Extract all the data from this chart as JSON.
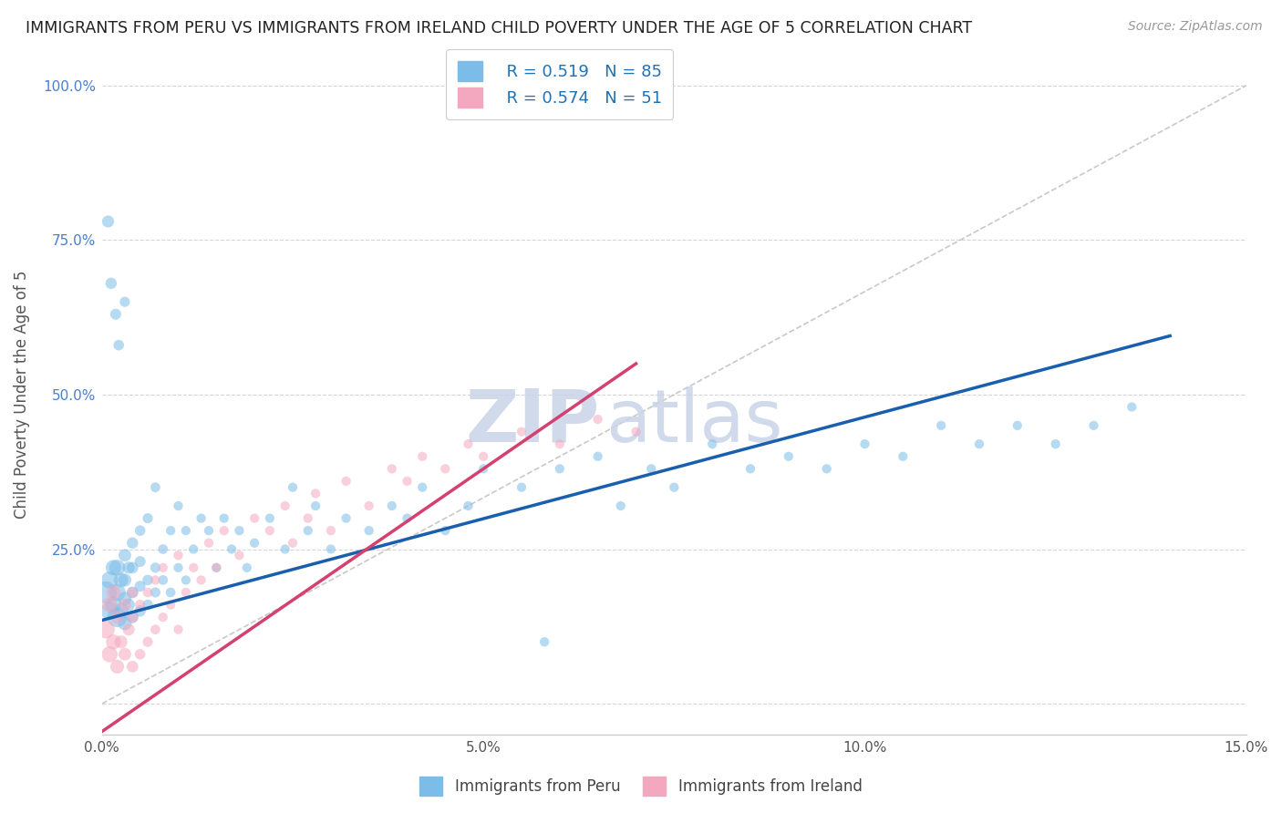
{
  "title": "IMMIGRANTS FROM PERU VS IMMIGRANTS FROM IRELAND CHILD POVERTY UNDER THE AGE OF 5 CORRELATION CHART",
  "source_text": "Source: ZipAtlas.com",
  "ylabel": "Child Poverty Under the Age of 5",
  "xlim": [
    0.0,
    0.15
  ],
  "ylim": [
    -0.05,
    1.05
  ],
  "xticks": [
    0.0,
    0.05,
    0.1,
    0.15
  ],
  "xticklabels": [
    "0.0%",
    "5.0%",
    "10.0%",
    "15.0%"
  ],
  "yticks": [
    0.0,
    0.25,
    0.5,
    0.75,
    1.0
  ],
  "yticklabels": [
    "",
    "25.0%",
    "50.0%",
    "75.0%",
    "100.0%"
  ],
  "blue_color": "#7bbde8",
  "pink_color": "#f4a8bf",
  "blue_R": 0.519,
  "blue_N": 85,
  "pink_R": 0.574,
  "pink_N": 51,
  "blue_line_color": "#1a5fad",
  "pink_line_color": "#d44070",
  "blue_line_x0": 0.0,
  "blue_line_y0": 0.135,
  "blue_line_x1": 0.14,
  "blue_line_y1": 0.595,
  "pink_line_x0": 0.0,
  "pink_line_y0": -0.045,
  "pink_line_x1": 0.07,
  "pink_line_y1": 0.55,
  "watermark_zip": "ZIP",
  "watermark_atlas": "atlas",
  "legend_label_blue": "Immigrants from Peru",
  "legend_label_pink": "Immigrants from Ireland",
  "blue_scatter_x": [
    0.0005,
    0.001,
    0.001,
    0.0015,
    0.0015,
    0.002,
    0.002,
    0.002,
    0.0025,
    0.0025,
    0.003,
    0.003,
    0.003,
    0.003,
    0.0035,
    0.0035,
    0.004,
    0.004,
    0.004,
    0.004,
    0.005,
    0.005,
    0.005,
    0.005,
    0.006,
    0.006,
    0.006,
    0.007,
    0.007,
    0.007,
    0.008,
    0.008,
    0.009,
    0.009,
    0.01,
    0.01,
    0.011,
    0.011,
    0.012,
    0.013,
    0.014,
    0.015,
    0.016,
    0.017,
    0.018,
    0.019,
    0.02,
    0.022,
    0.024,
    0.025,
    0.027,
    0.028,
    0.03,
    0.032,
    0.035,
    0.038,
    0.04,
    0.042,
    0.045,
    0.048,
    0.05,
    0.055,
    0.058,
    0.06,
    0.065,
    0.068,
    0.072,
    0.075,
    0.08,
    0.085,
    0.09,
    0.095,
    0.1,
    0.105,
    0.11,
    0.115,
    0.12,
    0.125,
    0.13,
    0.135,
    0.0008,
    0.0012,
    0.0018,
    0.0022,
    0.003
  ],
  "blue_scatter_y": [
    0.18,
    0.15,
    0.2,
    0.16,
    0.22,
    0.14,
    0.18,
    0.22,
    0.15,
    0.2,
    0.13,
    0.17,
    0.2,
    0.24,
    0.16,
    0.22,
    0.14,
    0.18,
    0.22,
    0.26,
    0.15,
    0.19,
    0.23,
    0.28,
    0.16,
    0.2,
    0.3,
    0.18,
    0.22,
    0.35,
    0.2,
    0.25,
    0.18,
    0.28,
    0.22,
    0.32,
    0.2,
    0.28,
    0.25,
    0.3,
    0.28,
    0.22,
    0.3,
    0.25,
    0.28,
    0.22,
    0.26,
    0.3,
    0.25,
    0.35,
    0.28,
    0.32,
    0.25,
    0.3,
    0.28,
    0.32,
    0.3,
    0.35,
    0.28,
    0.32,
    0.38,
    0.35,
    0.1,
    0.38,
    0.4,
    0.32,
    0.38,
    0.35,
    0.42,
    0.38,
    0.4,
    0.38,
    0.42,
    0.4,
    0.45,
    0.42,
    0.45,
    0.42,
    0.45,
    0.48,
    0.78,
    0.68,
    0.63,
    0.58,
    0.65
  ],
  "blue_scatter_size": [
    300,
    200,
    180,
    160,
    150,
    250,
    180,
    160,
    140,
    130,
    120,
    110,
    105,
    100,
    95,
    90,
    90,
    85,
    85,
    80,
    80,
    75,
    75,
    70,
    70,
    70,
    65,
    65,
    65,
    60,
    60,
    60,
    60,
    55,
    55,
    55,
    55,
    55,
    55,
    55,
    55,
    55,
    55,
    55,
    55,
    55,
    55,
    55,
    55,
    55,
    55,
    55,
    55,
    55,
    55,
    55,
    55,
    55,
    55,
    55,
    55,
    55,
    55,
    55,
    55,
    55,
    55,
    55,
    55,
    55,
    55,
    55,
    55,
    55,
    55,
    55,
    55,
    55,
    55,
    55,
    90,
    80,
    75,
    70,
    65
  ],
  "pink_scatter_x": [
    0.0005,
    0.001,
    0.001,
    0.0015,
    0.0015,
    0.002,
    0.002,
    0.0025,
    0.003,
    0.003,
    0.0035,
    0.004,
    0.004,
    0.004,
    0.005,
    0.005,
    0.006,
    0.006,
    0.007,
    0.007,
    0.008,
    0.008,
    0.009,
    0.01,
    0.01,
    0.011,
    0.012,
    0.013,
    0.014,
    0.015,
    0.016,
    0.018,
    0.02,
    0.022,
    0.024,
    0.025,
    0.027,
    0.028,
    0.03,
    0.032,
    0.035,
    0.038,
    0.04,
    0.042,
    0.045,
    0.048,
    0.05,
    0.055,
    0.06,
    0.065,
    0.07
  ],
  "pink_scatter_y": [
    0.12,
    0.08,
    0.16,
    0.1,
    0.18,
    0.06,
    0.14,
    0.1,
    0.08,
    0.16,
    0.12,
    0.06,
    0.14,
    0.18,
    0.08,
    0.16,
    0.1,
    0.18,
    0.12,
    0.2,
    0.14,
    0.22,
    0.16,
    0.12,
    0.24,
    0.18,
    0.22,
    0.2,
    0.26,
    0.22,
    0.28,
    0.24,
    0.3,
    0.28,
    0.32,
    0.26,
    0.3,
    0.34,
    0.28,
    0.36,
    0.32,
    0.38,
    0.36,
    0.4,
    0.38,
    0.42,
    0.4,
    0.44,
    0.42,
    0.46,
    0.44
  ],
  "pink_scatter_size": [
    200,
    160,
    150,
    140,
    130,
    120,
    110,
    105,
    100,
    95,
    90,
    85,
    80,
    75,
    70,
    65,
    65,
    60,
    60,
    55,
    55,
    55,
    55,
    55,
    55,
    55,
    55,
    55,
    55,
    55,
    55,
    55,
    55,
    55,
    55,
    55,
    55,
    55,
    55,
    55,
    55,
    55,
    55,
    55,
    55,
    55,
    55,
    55,
    55,
    55,
    55
  ]
}
